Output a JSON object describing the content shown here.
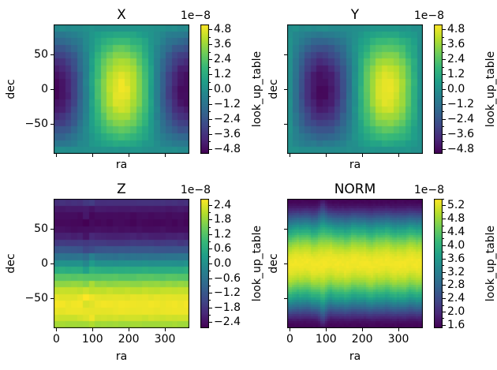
{
  "figure": {
    "background": "#ffffff"
  },
  "chart_data": {
    "type": "heatmap",
    "colormap": "viridis",
    "xlabel": "ra",
    "ylabel": "dec",
    "colorbar_label": "look_up_table",
    "offset_text": "1e−8",
    "value_scale": "1e-8",
    "x_range": [
      -7.5,
      367.5
    ],
    "y_range": [
      -92.5,
      92.5
    ],
    "x_ticks": {
      "values": [
        0,
        100,
        200,
        300
      ],
      "labels": [
        "0",
        "100",
        "200",
        "300"
      ]
    },
    "y_ticks": {
      "values": [
        50,
        0,
        -50
      ],
      "labels": [
        "50",
        "0",
        "−50"
      ]
    },
    "panels": [
      {
        "title": "X",
        "model": "x",
        "description": "-A*cos(ra)*cos(dec), bright maximum at ra=180 dec=0, dark minima at ra=0/360 dec=0",
        "amplitude": 5.0,
        "noise": 0.28,
        "cols": 23,
        "rows": 19,
        "vmin": -5.2,
        "vmax": 5.2,
        "cb_ticks": {
          "values": [
            4.8,
            3.6,
            2.4,
            1.2,
            0.0,
            -1.2,
            -2.4,
            -3.6,
            -4.8
          ],
          "labels": [
            "4.8",
            "3.6",
            "2.4",
            "1.2",
            "0.0",
            "−1.2",
            "−2.4",
            "−3.6",
            "−4.8"
          ]
        },
        "show_x_tick_labels": false,
        "show_y_tick_labels": true
      },
      {
        "title": "Y",
        "model": "y",
        "description": "-A*sin(ra)*cos(dec), dark minimum at ra=90 dec=0, bright maximum at ra=270 dec=0",
        "amplitude": 5.0,
        "noise": 0.28,
        "cols": 23,
        "rows": 19,
        "vmin": -5.2,
        "vmax": 5.2,
        "cb_ticks": {
          "values": [
            4.8,
            3.6,
            2.4,
            1.2,
            0.0,
            -1.2,
            -2.4,
            -3.6,
            -4.8
          ],
          "labels": [
            "4.8",
            "3.6",
            "2.4",
            "1.2",
            "0.0",
            "−1.2",
            "−2.4",
            "−3.6",
            "−4.8"
          ]
        },
        "show_x_tick_labels": false,
        "show_y_tick_labels": false
      },
      {
        "title": "Z",
        "model": "z",
        "description": "horizontal bands, -A*sin(1.5*dec): darkest near dec=+60, brightest near dec=-55, zero at dec=0; small anomaly stripe near ra=90",
        "amplitude": 2.55,
        "noise": 0.1,
        "stripe_ra": 90,
        "cols": 23,
        "rows": 19,
        "vmin": -2.65,
        "vmax": 2.65,
        "cb_ticks": {
          "values": [
            2.4,
            1.8,
            1.2,
            0.6,
            0.0,
            -0.6,
            -1.2,
            -1.8,
            -2.4
          ],
          "labels": [
            "2.4",
            "1.8",
            "1.2",
            "0.6",
            "0.0",
            "−0.6",
            "−1.2",
            "−1.8",
            "−2.4"
          ]
        },
        "show_x_tick_labels": true,
        "show_y_tick_labels": true
      },
      {
        "title": "NORM",
        "model": "norm",
        "description": "sqrt((A*cos(dec))^2+floor^2): bright wavy band at dec=0 (~5.3e-8), dark at poles (~1.6e-8), bump near ra=92",
        "amplitude": 5.1,
        "floor": 1.55,
        "noise": 0.06,
        "wiggle_deg": 3.5,
        "bump_ra": 92,
        "cols": 57,
        "rows": 54,
        "vmin": 1.5,
        "vmax": 5.4,
        "cb_ticks": {
          "values": [
            5.2,
            4.8,
            4.4,
            4.0,
            3.6,
            3.2,
            2.8,
            2.4,
            2.0,
            1.6
          ],
          "labels": [
            "5.2",
            "4.8",
            "4.4",
            "4.0",
            "3.6",
            "3.2",
            "2.8",
            "2.4",
            "2.0",
            "1.6"
          ]
        },
        "show_x_tick_labels": true,
        "show_y_tick_labels": false
      }
    ]
  }
}
